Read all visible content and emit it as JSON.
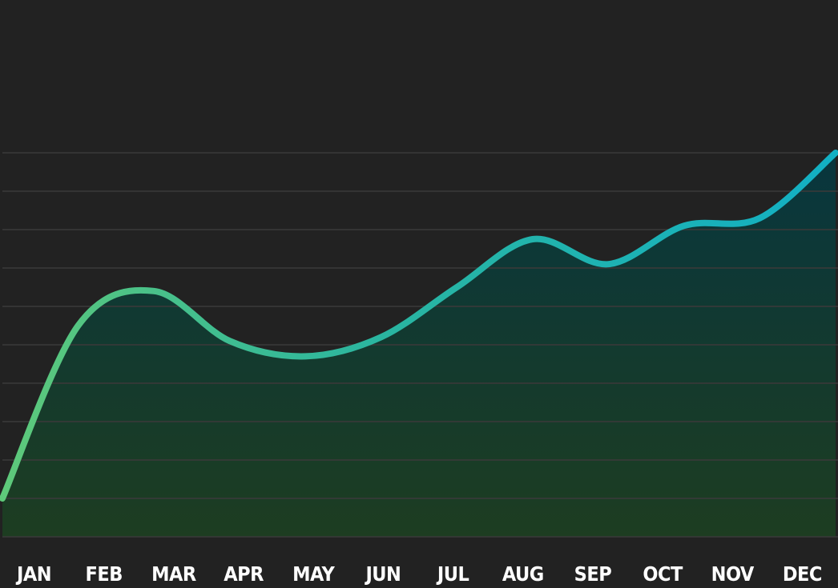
{
  "colors": {
    "background": "#222222",
    "grid": "#3a3a3a",
    "line_start": "#5ec97a",
    "line_mid": "#2ab5a0",
    "line_end": "#12b0c4",
    "fill_top": "#08363e",
    "fill_bottom": "#1d3d21",
    "tick_text": "#ffffff"
  },
  "chart_data": {
    "type": "area",
    "title": "",
    "xlabel": "",
    "ylabel": "",
    "categories": [
      "JAN",
      "FEB",
      "MAR",
      "APR",
      "MAY",
      "JUN",
      "JUL",
      "AUG",
      "SEP",
      "OCT",
      "NOV",
      "DEC"
    ],
    "series": [
      {
        "values": [
          1,
          5.5,
          6.4,
          5.1,
          4.7,
          5.2,
          6.5,
          7.75,
          7.1,
          8.1,
          8.3,
          10
        ]
      }
    ],
    "ylim": [
      0,
      10
    ],
    "grid": true,
    "legend": "none",
    "smooth": true
  }
}
